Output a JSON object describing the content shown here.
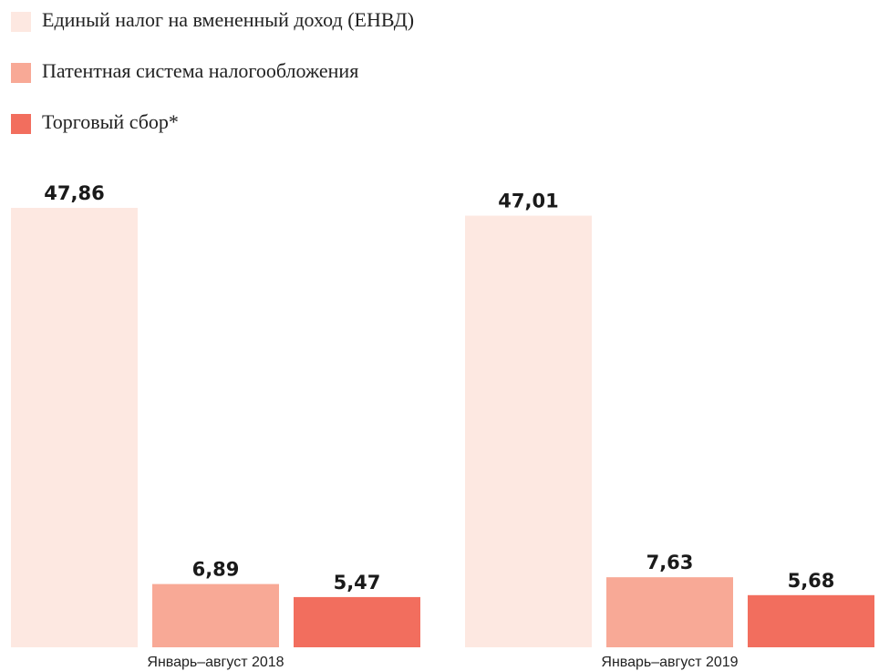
{
  "chart_data": {
    "type": "bar",
    "categories": [
      "Январь–август 2018",
      "Январь–август 2019"
    ],
    "series": [
      {
        "name": "Единый налог на вмененный доход (ЕНВД)",
        "color": "#fde8e1",
        "values": [
          47.86,
          47.01
        ],
        "value_labels": [
          "47,86",
          "47,01"
        ]
      },
      {
        "name": "Патентная система налогообложения",
        "color": "#f8a996",
        "values": [
          6.89,
          7.63
        ],
        "value_labels": [
          "6,89",
          "7,63"
        ]
      },
      {
        "name": "Торговый сбор*",
        "color": "#f26e5e",
        "values": [
          5.47,
          5.68
        ],
        "value_labels": [
          "5,47",
          "5,68"
        ]
      }
    ]
  }
}
